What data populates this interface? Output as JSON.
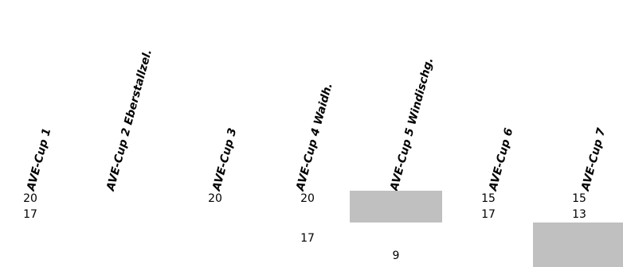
{
  "headers": [
    "AVE-Cup 1",
    "AVE-Cup 2 Eberstallzel.",
    "AVE-Cup 3",
    "AVE-Cup 4 Waidh.",
    "AVE-Cup 5 Windischg.",
    "AVE-Cup 6",
    "AVE-Cup 7"
  ],
  "rows": [
    [
      "20",
      "",
      "20",
      "20",
      "",
      "15",
      "15"
    ],
    [
      "17",
      "",
      "",
      "",
      "",
      "17",
      "13"
    ],
    [
      "",
      "",
      "",
      "",
      "",
      "",
      ""
    ],
    [
      "",
      "",
      "",
      "17",
      "",
      "",
      ""
    ],
    [
      "",
      "",
      "",
      "",
      "9",
      "",
      ""
    ]
  ],
  "shaded_cells": [
    {
      "row": 0,
      "col": 4
    },
    {
      "row": 1,
      "col": 4
    },
    {
      "row": 2,
      "col": 6
    },
    {
      "row": 3,
      "col": 6
    },
    {
      "row": 4,
      "col": 6
    }
  ],
  "colors": {
    "shade": "#c0c0c0",
    "text": "#000000",
    "background": "#ffffff"
  }
}
